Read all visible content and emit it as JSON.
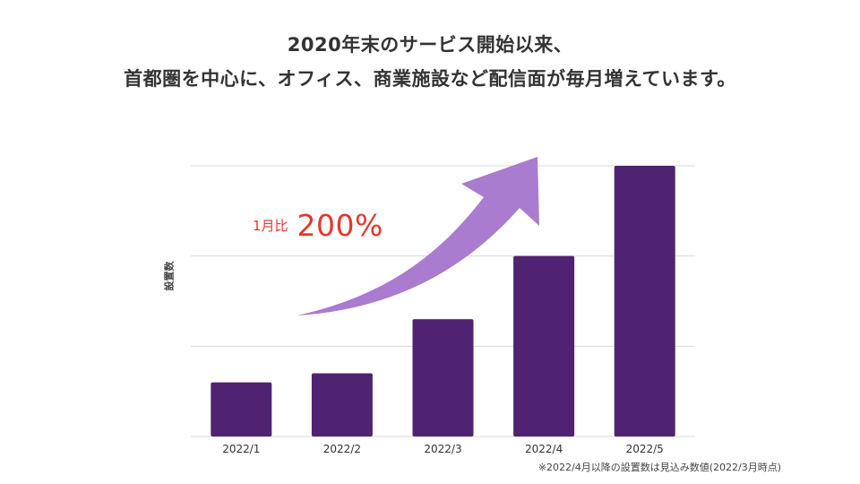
{
  "title": {
    "line1": "2020年末のサービス開始以来、",
    "line2": "首都圏を中心に、オフィス、商業施設など配信面が毎月増えています。"
  },
  "callout": {
    "prefix": "1月比",
    "value": "200%",
    "color": "#e8352b"
  },
  "footnote": "※2022/4月以降の設置数は見込み数値(2022/3月時点)",
  "colors": {
    "bar": "#4f2371",
    "arrow": "#a97ccf",
    "grid": "#d9d9d9"
  },
  "chart_data": {
    "type": "bar",
    "title": "",
    "xlabel": "",
    "ylabel": "設置数",
    "categories": [
      "2022/1",
      "2022/2",
      "2022/3",
      "2022/4",
      "2022/5"
    ],
    "values": [
      0.6,
      0.7,
      1.3,
      2.0,
      3.0
    ],
    "ylim": [
      0,
      3
    ],
    "grid": true,
    "annotations": [
      {
        "text": "1月比 200%",
        "type": "upward-arrow"
      }
    ]
  }
}
